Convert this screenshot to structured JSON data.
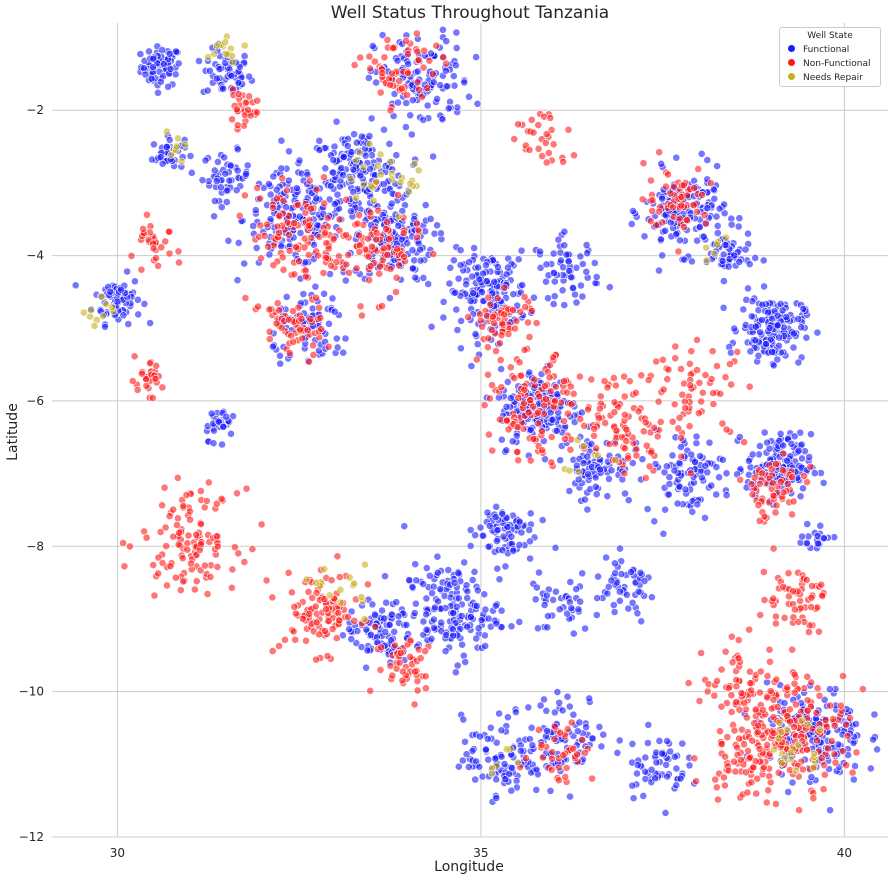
{
  "chart_data": {
    "type": "scatter",
    "title": "Well Status Throughout Tanzania",
    "xlabel": "Longitude",
    "ylabel": "Latitude",
    "xlim": [
      29.1,
      40.6
    ],
    "ylim": [
      -12,
      -0.8
    ],
    "xticks": [
      30,
      35,
      40
    ],
    "yticks": [
      -2,
      -4,
      -6,
      -8,
      -10,
      -12
    ],
    "grid": true,
    "legend": {
      "title": "Well State",
      "position": "top-right"
    },
    "series": [
      {
        "name": "Functional",
        "color": "#1a1aff",
        "clusters": [
          {
            "x": 30.6,
            "y": -1.4,
            "r": 0.25,
            "n": 70
          },
          {
            "x": 31.5,
            "y": -1.5,
            "r": 0.3,
            "n": 60
          },
          {
            "x": 30.0,
            "y": -4.6,
            "r": 0.3,
            "n": 70
          },
          {
            "x": 30.7,
            "y": -2.6,
            "r": 0.2,
            "n": 40
          },
          {
            "x": 31.5,
            "y": -2.9,
            "r": 0.3,
            "n": 50
          },
          {
            "x": 32.4,
            "y": -3.5,
            "r": 0.6,
            "n": 160
          },
          {
            "x": 33.3,
            "y": -2.9,
            "r": 0.6,
            "n": 200
          },
          {
            "x": 33.8,
            "y": -3.8,
            "r": 0.5,
            "n": 140
          },
          {
            "x": 34.2,
            "y": -1.6,
            "r": 0.6,
            "n": 120
          },
          {
            "x": 35.1,
            "y": -4.5,
            "r": 0.5,
            "n": 160
          },
          {
            "x": 36.2,
            "y": -4.2,
            "r": 0.4,
            "n": 60
          },
          {
            "x": 37.8,
            "y": -3.4,
            "r": 0.5,
            "n": 170
          },
          {
            "x": 38.4,
            "y": -4.0,
            "r": 0.3,
            "n": 50
          },
          {
            "x": 39.0,
            "y": -5.0,
            "r": 0.4,
            "n": 160
          },
          {
            "x": 39.1,
            "y": -6.9,
            "r": 0.4,
            "n": 150
          },
          {
            "x": 35.8,
            "y": -6.1,
            "r": 0.5,
            "n": 160
          },
          {
            "x": 36.6,
            "y": -6.9,
            "r": 0.4,
            "n": 80
          },
          {
            "x": 37.8,
            "y": -7.0,
            "r": 0.5,
            "n": 90
          },
          {
            "x": 34.6,
            "y": -8.9,
            "r": 0.6,
            "n": 170
          },
          {
            "x": 35.3,
            "y": -7.8,
            "r": 0.4,
            "n": 80
          },
          {
            "x": 33.6,
            "y": -9.2,
            "r": 0.4,
            "n": 90
          },
          {
            "x": 35.3,
            "y": -10.9,
            "r": 0.5,
            "n": 100
          },
          {
            "x": 36.2,
            "y": -10.6,
            "r": 0.5,
            "n": 80
          },
          {
            "x": 37.4,
            "y": -11.0,
            "r": 0.4,
            "n": 60
          },
          {
            "x": 39.6,
            "y": -10.6,
            "r": 0.6,
            "n": 170
          },
          {
            "x": 39.6,
            "y": -7.9,
            "r": 0.2,
            "n": 20
          },
          {
            "x": 31.4,
            "y": -6.3,
            "r": 0.2,
            "n": 30
          },
          {
            "x": 32.7,
            "y": -5.0,
            "r": 0.5,
            "n": 80
          },
          {
            "x": 37.0,
            "y": -8.6,
            "r": 0.4,
            "n": 50
          },
          {
            "x": 36.1,
            "y": -8.8,
            "r": 0.4,
            "n": 40
          }
        ]
      },
      {
        "name": "Non-Functional",
        "color": "#ff1a1a",
        "clusters": [
          {
            "x": 31.0,
            "y": -7.9,
            "r": 0.6,
            "n": 120
          },
          {
            "x": 32.8,
            "y": -8.9,
            "r": 0.5,
            "n": 100
          },
          {
            "x": 33.9,
            "y": -1.5,
            "r": 0.5,
            "n": 60
          },
          {
            "x": 32.5,
            "y": -3.7,
            "r": 0.6,
            "n": 100
          },
          {
            "x": 33.5,
            "y": -3.9,
            "r": 0.6,
            "n": 100
          },
          {
            "x": 32.4,
            "y": -5.0,
            "r": 0.4,
            "n": 60
          },
          {
            "x": 35.8,
            "y": -6.1,
            "r": 0.6,
            "n": 120
          },
          {
            "x": 37.0,
            "y": -6.3,
            "r": 0.6,
            "n": 90
          },
          {
            "x": 39.3,
            "y": -10.5,
            "r": 0.7,
            "n": 200
          },
          {
            "x": 38.6,
            "y": -11.0,
            "r": 0.5,
            "n": 60
          },
          {
            "x": 39.3,
            "y": -8.7,
            "r": 0.4,
            "n": 60
          },
          {
            "x": 39.0,
            "y": -7.2,
            "r": 0.4,
            "n": 60
          },
          {
            "x": 30.4,
            "y": -5.7,
            "r": 0.2,
            "n": 30
          },
          {
            "x": 30.5,
            "y": -3.9,
            "r": 0.3,
            "n": 30
          },
          {
            "x": 31.7,
            "y": -2.0,
            "r": 0.2,
            "n": 30
          },
          {
            "x": 35.3,
            "y": -4.9,
            "r": 0.4,
            "n": 60
          },
          {
            "x": 38.0,
            "y": -5.9,
            "r": 0.6,
            "n": 60
          },
          {
            "x": 34.0,
            "y": -9.6,
            "r": 0.4,
            "n": 50
          },
          {
            "x": 36.1,
            "y": -10.8,
            "r": 0.4,
            "n": 40
          },
          {
            "x": 37.7,
            "y": -3.2,
            "r": 0.4,
            "n": 60
          },
          {
            "x": 38.6,
            "y": -9.9,
            "r": 0.5,
            "n": 60
          },
          {
            "x": 35.8,
            "y": -2.4,
            "r": 0.4,
            "n": 30
          }
        ]
      },
      {
        "name": "Needs Repair",
        "color": "#c4b01e",
        "clusters": [
          {
            "x": 31.5,
            "y": -1.2,
            "r": 0.3,
            "n": 15
          },
          {
            "x": 29.8,
            "y": -4.8,
            "r": 0.2,
            "n": 10
          },
          {
            "x": 33.5,
            "y": -2.9,
            "r": 0.3,
            "n": 15
          },
          {
            "x": 34.0,
            "y": -3.0,
            "r": 0.3,
            "n": 12
          },
          {
            "x": 33.1,
            "y": -8.6,
            "r": 0.3,
            "n": 15
          },
          {
            "x": 39.3,
            "y": -10.7,
            "r": 0.4,
            "n": 20
          },
          {
            "x": 36.4,
            "y": -6.8,
            "r": 0.3,
            "n": 8
          },
          {
            "x": 30.8,
            "y": -2.5,
            "r": 0.2,
            "n": 8
          },
          {
            "x": 35.4,
            "y": -11.0,
            "r": 0.3,
            "n": 6
          },
          {
            "x": 38.2,
            "y": -3.9,
            "r": 0.3,
            "n": 6
          }
        ]
      }
    ]
  }
}
